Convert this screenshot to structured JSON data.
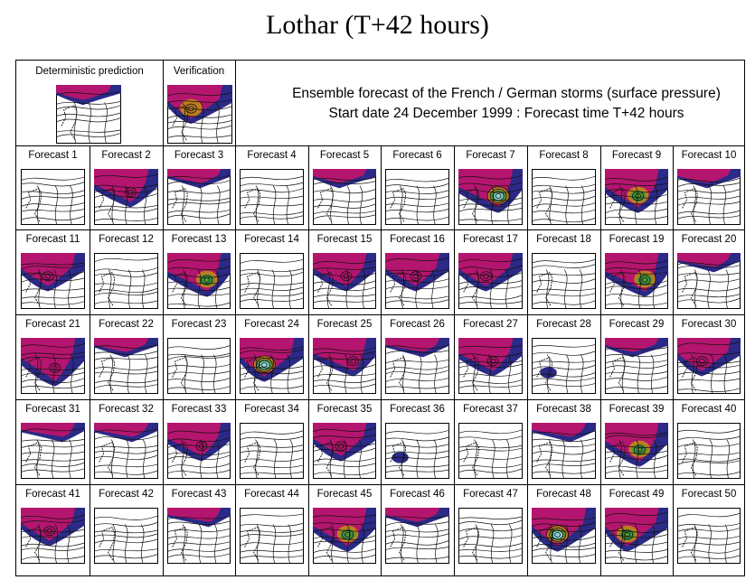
{
  "title": "Lothar (T+42 hours)",
  "header": {
    "deterministic_label": "Deterministic prediction",
    "verification_label": "Verification",
    "line1": "Ensemble forecast of the French / German storms (surface pressure)",
    "line2": "Start date 24 December 1999 : Forecast time T+42 hours"
  },
  "colors": {
    "magenta": "#b4156e",
    "navy": "#2b2a86",
    "orange": "#c07c1e",
    "green": "#4a9a3a",
    "cyan": "#8fd6d6",
    "contour": "#111111"
  },
  "panels": [
    {
      "id": "deterministic",
      "storm": "edge",
      "label": ""
    },
    {
      "id": "verification",
      "storm": "deep",
      "label": "L"
    },
    {
      "label": "Forecast  1",
      "storm": "none"
    },
    {
      "label": "Forecast  2",
      "storm": "mid"
    },
    {
      "label": "Forecast  3",
      "storm": "edge"
    },
    {
      "label": "Forecast  4",
      "storm": "none"
    },
    {
      "label": "Forecast  5",
      "storm": "edge"
    },
    {
      "label": "Forecast  6",
      "storm": "none"
    },
    {
      "label": "Forecast  7",
      "storm": "extreme"
    },
    {
      "label": "Forecast  8",
      "storm": "none"
    },
    {
      "label": "Forecast  9",
      "storm": "strong"
    },
    {
      "label": "Forecast 10",
      "storm": "edge"
    },
    {
      "label": "Forecast 11",
      "storm": "mid"
    },
    {
      "label": "Forecast 12",
      "storm": "none"
    },
    {
      "label": "Forecast 13",
      "storm": "strong"
    },
    {
      "label": "Forecast 14",
      "storm": "none"
    },
    {
      "label": "Forecast 15",
      "storm": "mid"
    },
    {
      "label": "Forecast 16",
      "storm": "mid"
    },
    {
      "label": "Forecast 17",
      "storm": "mid"
    },
    {
      "label": "Forecast 18",
      "storm": "none"
    },
    {
      "label": "Forecast 19",
      "storm": "strong"
    },
    {
      "label": "Forecast 20",
      "storm": "edge"
    },
    {
      "label": "Forecast 21",
      "storm": "plume"
    },
    {
      "label": "Forecast 22",
      "storm": "edge"
    },
    {
      "label": "Forecast 23",
      "storm": "none"
    },
    {
      "label": "Forecast 24",
      "storm": "extreme"
    },
    {
      "label": "Forecast 25",
      "storm": "mid"
    },
    {
      "label": "Forecast 26",
      "storm": "edge"
    },
    {
      "label": "Forecast 27",
      "storm": "mid"
    },
    {
      "label": "Forecast 28",
      "storm": "blob"
    },
    {
      "label": "Forecast 29",
      "storm": "edge"
    },
    {
      "label": "Forecast 30",
      "storm": "mid"
    },
    {
      "label": "Forecast 31",
      "storm": "edge"
    },
    {
      "label": "Forecast 32",
      "storm": "edge"
    },
    {
      "label": "Forecast 33",
      "storm": "mid"
    },
    {
      "label": "Forecast 34",
      "storm": "none"
    },
    {
      "label": "Forecast 35",
      "storm": "mid"
    },
    {
      "label": "Forecast 36",
      "storm": "blob"
    },
    {
      "label": "Forecast 37",
      "storm": "none"
    },
    {
      "label": "Forecast 38",
      "storm": "edge"
    },
    {
      "label": "Forecast 39",
      "storm": "strong"
    },
    {
      "label": "Forecast 40",
      "storm": "none"
    },
    {
      "label": "Forecast 41",
      "storm": "mid"
    },
    {
      "label": "Forecast 42",
      "storm": "none"
    },
    {
      "label": "Forecast 43",
      "storm": "edge"
    },
    {
      "label": "Forecast 44",
      "storm": "none"
    },
    {
      "label": "Forecast 45",
      "storm": "strong"
    },
    {
      "label": "Forecast 46",
      "storm": "edge"
    },
    {
      "label": "Forecast 47",
      "storm": "none"
    },
    {
      "label": "Forecast 48",
      "storm": "extreme"
    },
    {
      "label": "Forecast 49",
      "storm": "strong"
    },
    {
      "label": "Forecast 50",
      "storm": "none"
    }
  ]
}
